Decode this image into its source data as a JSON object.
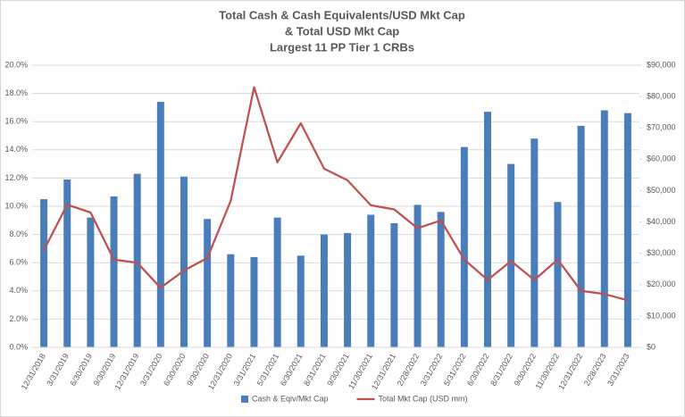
{
  "chart_data": {
    "type": "bar",
    "title": [
      "Total Cash & Cash Equivalents/USD Mkt Cap",
      "& Total USD Mkt Cap",
      "Largest 11  PP Tier 1 CRBs"
    ],
    "categories": [
      "12/31/2018",
      "3/31/2019",
      "6/30/2019",
      "9/30/2019",
      "12/31/2019",
      "3/31/2020",
      "6/30/2020",
      "9/30/2020",
      "12/31/2020",
      "3/31/2021",
      "5/31/2021",
      "6/30/2021",
      "8/31/2021",
      "9/30/2021",
      "11/30/2021",
      "12/31/2021",
      "2/28/2022",
      "3/31/2022",
      "5/31/2022",
      "6/30/2022",
      "8/31/2022",
      "9/30/2022",
      "11/30/2022",
      "12/31/2022",
      "2/28/2023",
      "3/31/2023"
    ],
    "series": [
      {
        "name": "Cash & Eqiv/Mkt Cap",
        "type": "bar",
        "color": "#4a7ebb",
        "values": [
          10.5,
          11.9,
          9.2,
          10.7,
          12.3,
          17.4,
          12.1,
          9.1,
          6.6,
          6.4,
          9.2,
          6.5,
          8.0,
          8.1,
          9.4,
          8.8,
          10.1,
          9.6,
          14.2,
          16.7,
          13.0,
          14.8,
          10.3,
          15.7,
          16.8,
          16.6
        ]
      },
      {
        "name": "Total Mkt Cap (USD mm)",
        "type": "line",
        "axis": "y2",
        "color": "#c0504d",
        "values": [
          31000,
          45500,
          43000,
          28000,
          27000,
          19000,
          24500,
          28500,
          46700,
          83000,
          59000,
          71500,
          57000,
          53300,
          45300,
          44000,
          38000,
          40500,
          28000,
          21500,
          27500,
          21500,
          28000,
          18000,
          17000,
          15000
        ]
      }
    ],
    "ylim": [
      0,
      20
    ],
    "yticks": [
      {
        "value": 0,
        "label": "0.0%"
      },
      {
        "value": 2,
        "label": "2.0%"
      },
      {
        "value": 4,
        "label": "4.0%"
      },
      {
        "value": 6,
        "label": "6.0%"
      },
      {
        "value": 8,
        "label": "8.0%"
      },
      {
        "value": 10,
        "label": "10.0%"
      },
      {
        "value": 12,
        "label": "12.0%"
      },
      {
        "value": 14,
        "label": "14.0%"
      },
      {
        "value": 16,
        "label": "16.0%"
      },
      {
        "value": 18,
        "label": "18.0%"
      },
      {
        "value": 20,
        "label": "20.0%"
      }
    ],
    "y2lim": [
      0,
      90000
    ],
    "y2ticks": [
      {
        "value": 0,
        "label": "$0"
      },
      {
        "value": 10000,
        "label": "$10,000"
      },
      {
        "value": 20000,
        "label": "$20,000"
      },
      {
        "value": 30000,
        "label": "$30,000"
      },
      {
        "value": 40000,
        "label": "$40,000"
      },
      {
        "value": 50000,
        "label": "$50,000"
      },
      {
        "value": 60000,
        "label": "$60,000"
      },
      {
        "value": 70000,
        "label": "$70,000"
      },
      {
        "value": 80000,
        "label": "$80,000"
      },
      {
        "value": 90000,
        "label": "$90,000"
      }
    ],
    "grid": true,
    "legend": "bottom"
  }
}
